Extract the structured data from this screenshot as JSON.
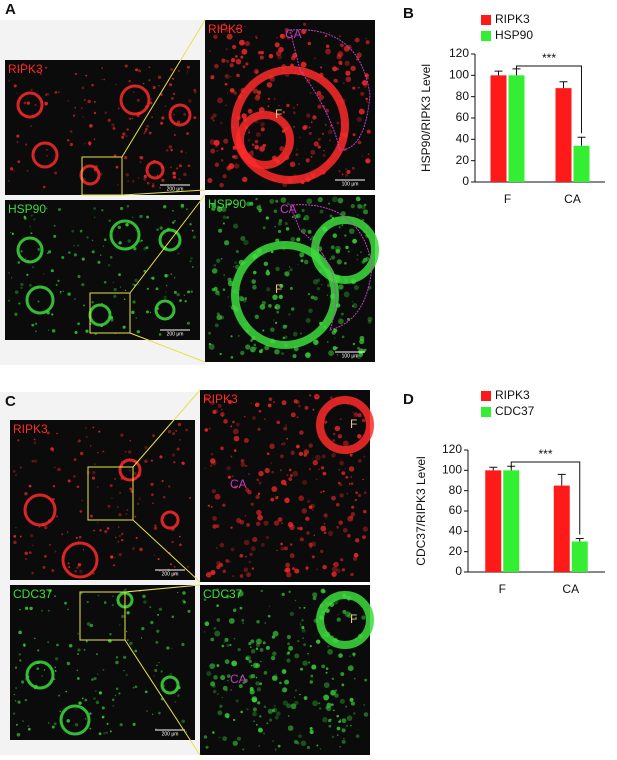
{
  "panel_labels": [
    "A",
    "B",
    "C",
    "D"
  ],
  "images": [
    {
      "channel": "RIPK3",
      "scale": "200 μm"
    },
    {
      "channel": "HSP90",
      "scale": "200 μm"
    },
    {
      "channel": "RIPK3",
      "labels": [
        "CA",
        "F"
      ],
      "scale": "100 μm"
    },
    {
      "channel": "HSP90",
      "labels": [
        "CA",
        "F"
      ],
      "scale": "100 μm"
    },
    {
      "channel": "RIPK3",
      "scale": "200 μm"
    },
    {
      "channel": "CDC37",
      "scale": "200 μm"
    },
    {
      "channel": "RIPK3",
      "labels": [
        "CA",
        "F"
      ]
    },
    {
      "channel": "CDC37",
      "labels": [
        "CA",
        "F"
      ]
    }
  ],
  "chart_data": [
    {
      "type": "bar",
      "y_label": "HSP90/RIPK3 Level",
      "categories": [
        "F",
        "CA"
      ],
      "series": [
        {
          "name": "RIPK3",
          "color": "#ff1a1a",
          "values": [
            100,
            88
          ],
          "errors": [
            4,
            6
          ]
        },
        {
          "name": "HSP90",
          "color": "#33ee33",
          "values": [
            100,
            34
          ],
          "errors": [
            6,
            8
          ]
        }
      ],
      "significance": "***",
      "ylim": [
        0,
        120
      ],
      "yticks": [
        0,
        20,
        40,
        60,
        80,
        100,
        120
      ]
    },
    {
      "type": "bar",
      "y_label": "CDC37/RIPK3 Level",
      "categories": [
        "F",
        "CA"
      ],
      "series": [
        {
          "name": "RIPK3",
          "color": "#ff1a1a",
          "values": [
            100,
            85
          ],
          "errors": [
            3,
            11
          ]
        },
        {
          "name": "CDC37",
          "color": "#33ee33",
          "values": [
            100,
            30
          ],
          "errors": [
            4,
            3
          ]
        }
      ],
      "significance": "***",
      "ylim": [
        0,
        120
      ],
      "yticks": [
        0,
        20,
        40,
        60,
        80,
        100,
        120
      ]
    }
  ]
}
